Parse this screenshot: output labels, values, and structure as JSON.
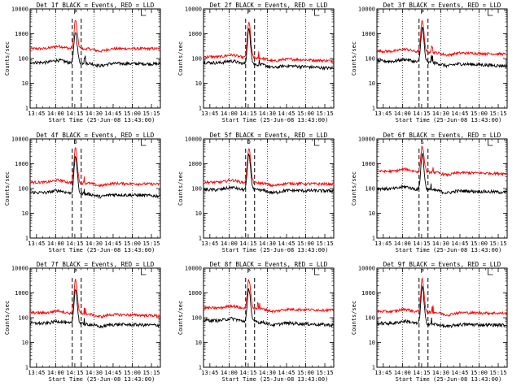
{
  "figure": {
    "background": "#ffffff",
    "colors": {
      "events": "#000000",
      "lld": "#ff0000"
    }
  },
  "chart_data": [
    {
      "type": "line",
      "title": "Det 1f BLACK = Events, RED = LLD",
      "marker": "P",
      "xlabel": "Start Time (25-Jun-08 13:43:00)",
      "ylabel": "Counts/sec",
      "x_ticks": [
        "13:45",
        "14:00",
        "14:15",
        "14:30",
        "14:45",
        "15:00",
        "15:15"
      ],
      "y_ticks": [
        "1",
        "10",
        "100",
        "1000",
        "10000"
      ],
      "ylim": [
        1,
        10000
      ],
      "ylog": true,
      "events_base": 70,
      "lld_base": 250,
      "events_end": 60,
      "lld_end": 250,
      "peak_events": 1200,
      "peak_lld": 3500
    },
    {
      "type": "line",
      "title": "Det 2f BLACK = Events, RED = LLD",
      "marker": "P",
      "xlabel": "Start Time (25-Jun-08 13:43:00)",
      "ylabel": "Counts/sec",
      "x_ticks": [
        "13:45",
        "14:00",
        "14:15",
        "14:30",
        "14:45",
        "15:00",
        "15:15"
      ],
      "y_ticks": [
        "1",
        "10",
        "100",
        "1000",
        "10000"
      ],
      "ylim": [
        1,
        10000
      ],
      "ylog": true,
      "events_base": 70,
      "lld_base": 120,
      "events_end": 40,
      "lld_end": 80,
      "peak_events": 1500,
      "peak_lld": 3000
    },
    {
      "type": "line",
      "title": "Det 3f BLACK = Events, RED = LLD",
      "marker": "P",
      "xlabel": "Start Time (25-Jun-08 13:43:00)",
      "ylabel": "Counts/sec",
      "x_ticks": [
        "13:45",
        "14:00",
        "14:15",
        "14:30",
        "14:45",
        "15:00",
        "15:15"
      ],
      "y_ticks": [
        "1",
        "10",
        "100",
        "1000",
        "10000"
      ],
      "ylim": [
        1,
        10000
      ],
      "ylog": true,
      "events_base": 80,
      "lld_base": 200,
      "events_end": 50,
      "lld_end": 150,
      "peak_events": 1800,
      "peak_lld": 3500
    },
    {
      "type": "line",
      "title": "Det 4f BLACK = Events, RED = LLD",
      "marker": "D",
      "xlabel": "Start Time (25-Jun-08 13:43:00)",
      "ylabel": "Counts/sec",
      "x_ticks": [
        "13:45",
        "14:00",
        "14:15",
        "14:30",
        "14:45",
        "15:00",
        "15:15"
      ],
      "y_ticks": [
        "1",
        "10",
        "100",
        "1000",
        "10000"
      ],
      "ylim": [
        1,
        10000
      ],
      "ylog": true,
      "events_base": 70,
      "lld_base": 180,
      "events_end": 50,
      "lld_end": 150,
      "peak_events": 2000,
      "peak_lld": 4500
    },
    {
      "type": "line",
      "title": "Det 5f BLACK = Events, RED = LLD",
      "marker": "D",
      "xlabel": "Start Time (25-Jun-08 13:43:00)",
      "ylabel": "Counts/sec",
      "x_ticks": [
        "13:45",
        "14:00",
        "14:15",
        "14:30",
        "14:45",
        "15:00",
        "15:15"
      ],
      "y_ticks": [
        "1",
        "10",
        "100",
        "1000",
        "10000"
      ],
      "ylim": [
        1,
        10000
      ],
      "ylog": true,
      "events_base": 90,
      "lld_base": 180,
      "events_end": 80,
      "lld_end": 150,
      "peak_events": 2500,
      "peak_lld": 4500
    },
    {
      "type": "line",
      "title": "Det 6f BLACK = Events, RED = LLD",
      "marker": "S",
      "xlabel": "Start Time (25-Jun-08 13:43:00)",
      "ylabel": "Counts/sec",
      "x_ticks": [
        "13:45",
        "14:00",
        "14:15",
        "14:30",
        "14:45",
        "15:00",
        "15:15"
      ],
      "y_ticks": [
        "1",
        "10",
        "100",
        "1000",
        "10000"
      ],
      "ylim": [
        1,
        10000
      ],
      "ylog": true,
      "events_base": 100,
      "lld_base": 500,
      "events_end": 70,
      "lld_end": 400,
      "peak_events": 2500,
      "peak_lld": 5000
    },
    {
      "type": "line",
      "title": "Det 7f BLACK = Events, RED = LLD",
      "marker": "P",
      "xlabel": "Start Time (25-Jun-08 13:43:00)",
      "ylabel": "Counts/sec",
      "x_ticks": [
        "13:45",
        "14:00",
        "14:15",
        "14:30",
        "14:45",
        "15:00",
        "15:15"
      ],
      "y_ticks": [
        "1",
        "10",
        "100",
        "1000",
        "10000"
      ],
      "ylim": [
        1,
        10000
      ],
      "ylog": true,
      "events_base": 60,
      "lld_base": 160,
      "events_end": 50,
      "lld_end": 120,
      "peak_events": 1500,
      "peak_lld": 3500
    },
    {
      "type": "line",
      "title": "Det 8f BLACK = Events, RED = LLD",
      "marker": "P",
      "xlabel": "Start Time (25-Jun-08 13:43:00)",
      "ylabel": "Counts/sec",
      "x_ticks": [
        "13:45",
        "14:00",
        "14:15",
        "14:30",
        "14:45",
        "15:00",
        "15:15"
      ],
      "y_ticks": [
        "1",
        "10",
        "100",
        "1000",
        "10000"
      ],
      "ylim": [
        1,
        10000
      ],
      "ylog": true,
      "events_base": 80,
      "lld_base": 250,
      "events_end": 50,
      "lld_end": 200,
      "peak_events": 1500,
      "peak_lld": 3500
    },
    {
      "type": "line",
      "title": "Det 9f BLACK = Events, RED = LLD",
      "marker": "P",
      "xlabel": "Start Time (25-Jun-08 13:43:00)",
      "ylabel": "Counts/sec",
      "x_ticks": [
        "13:45",
        "14:00",
        "14:15",
        "14:30",
        "14:45",
        "15:00",
        "15:15"
      ],
      "y_ticks": [
        "1",
        "10",
        "100",
        "1000",
        "10000"
      ],
      "ylim": [
        1,
        10000
      ],
      "ylog": true,
      "events_base": 60,
      "lld_base": 180,
      "events_end": 50,
      "lld_end": 150,
      "peak_events": 1800,
      "peak_lld": 3500
    }
  ]
}
